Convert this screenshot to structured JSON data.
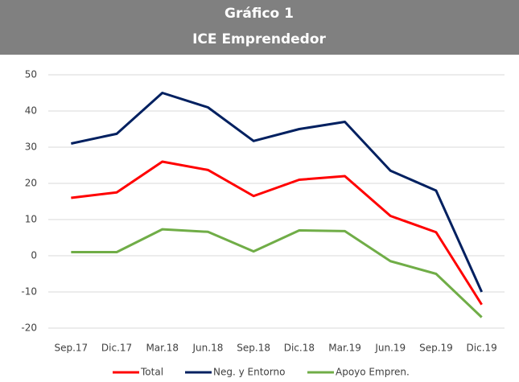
{
  "chart_data": {
    "type": "line",
    "title": "Gráfico 1",
    "subtitle": "ICE Emprendedor",
    "categories": [
      "Sep.17",
      "Dic.17",
      "Mar.18",
      "Jun.18",
      "Sep.18",
      "Dic.18",
      "Mar.19",
      "Jun.19",
      "Sep.19",
      "Dic.19"
    ],
    "series": [
      {
        "name": "Total",
        "color": "#ff0000",
        "values": [
          16,
          17.5,
          26,
          23.7,
          16.5,
          21,
          22,
          11,
          6.5,
          -13.5
        ]
      },
      {
        "name": "Neg. y Entorno",
        "color": "#002060",
        "values": [
          31,
          33.7,
          45,
          41,
          31.7,
          35,
          37,
          23.5,
          18,
          -10
        ]
      },
      {
        "name": "Apoyo Empren.",
        "color": "#70ad47",
        "values": [
          1,
          1,
          7.3,
          6.6,
          1.2,
          7,
          6.8,
          -1.5,
          -5,
          -17
        ]
      }
    ],
    "ylim": [
      -20,
      50
    ],
    "yticks": [
      -20,
      -10,
      0,
      10,
      20,
      30,
      40,
      50
    ],
    "grid": true,
    "legend": "bottom"
  }
}
